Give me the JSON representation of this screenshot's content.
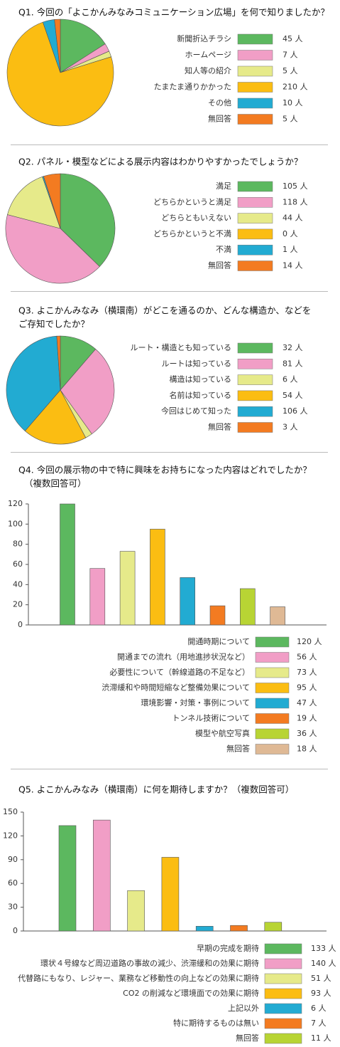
{
  "chart_data": [
    {
      "type": "pie",
      "title": [
        "Q1. 今回の「よこかんみなみコミュニケーション広場」を何で知りましたか？"
      ],
      "categories": [
        "新聞折込チラシ",
        "ホームページ",
        "知人等の紹介",
        "たまたま通りかかった",
        "その他",
        "無回答"
      ],
      "values": [
        45,
        7,
        5,
        210,
        10,
        5
      ],
      "value_labels": [
        "45 人",
        "7 人",
        "5 人",
        "210 人",
        "10 人",
        "5 人"
      ],
      "colors": [
        "#5cb85f",
        "#f19ec6",
        "#e6ea8a",
        "#fbbd12",
        "#22abd2",
        "#f37b21"
      ]
    },
    {
      "type": "pie",
      "title": [
        "Q2. パネル・模型などによる展示内容はわかりやすかったでしょうか？"
      ],
      "categories": [
        "満足",
        "どちらかというと満足",
        "どちらともいえない",
        "どちらかというと不満",
        "不満",
        "無回答"
      ],
      "values": [
        105,
        118,
        44,
        0,
        1,
        14
      ],
      "value_labels": [
        "105 人",
        "118 人",
        "44 人",
        "0 人",
        "1 人",
        "14 人"
      ],
      "colors": [
        "#5cb85f",
        "#f19ec6",
        "#e6ea8a",
        "#fbbd12",
        "#22abd2",
        "#f37b21"
      ]
    },
    {
      "type": "pie",
      "title": [
        "Q3. よこかんみなみ（横環南）がどこを通るのか、どんな構造か、などを",
        "ご存知でしたか？"
      ],
      "categories": [
        "ルート・構造とも知っている",
        "ルートは知っている",
        "構造は知っている",
        "名前は知っている",
        "今回はじめて知った",
        "無回答"
      ],
      "values": [
        32,
        81,
        6,
        54,
        106,
        3
      ],
      "value_labels": [
        "32 人",
        "81 人",
        "6 人",
        "54 人",
        "106 人",
        "3 人"
      ],
      "colors": [
        "#5cb85f",
        "#f19ec6",
        "#e6ea8a",
        "#fbbd12",
        "#22abd2",
        "#f37b21"
      ]
    },
    {
      "type": "bar",
      "title": [
        "Q4. 今回の展示物の中で特に興味をお持ちになった内容はどれでしたか？",
        "（複数回答可）"
      ],
      "categories": [
        "開通時期について",
        "開通までの流れ（用地進捗状況など）",
        "必要性について（幹線道路の不足など）",
        "渋滞緩和や時間短縮など整備効果について",
        "環境影響・対策・事例について",
        "トンネル技術について",
        "模型や航空写真",
        "無回答"
      ],
      "values": [
        120,
        56,
        73,
        95,
        47,
        19,
        36,
        18
      ],
      "value_labels": [
        "120 人",
        "56 人",
        "73 人",
        "95 人",
        "47 人",
        "19 人",
        "36 人",
        "18 人"
      ],
      "colors": [
        "#5cb85f",
        "#f19ec6",
        "#e6ea8a",
        "#fbbd12",
        "#22abd2",
        "#f37b21",
        "#b8d434",
        "#dfb995"
      ],
      "ylim": [
        0,
        120
      ],
      "yticks": [
        0,
        20,
        40,
        60,
        80,
        100,
        120
      ]
    },
    {
      "type": "bar",
      "title": [
        "Q5. よこかんみなみ（横環南）に何を期待しますか？（複数回答可）"
      ],
      "categories": [
        "早期の完成を期待",
        "環状４号線など周辺道路の事故の減少、渋滞緩和の効果に期待",
        "代替路にもなり、レジャー、業務など移動性の向上などの効果に期待",
        "CO2 の削減など環境面での効果に期待",
        "上記以外",
        "特に期待するものは無い",
        "無回答"
      ],
      "values": [
        133,
        140,
        51,
        93,
        6,
        7,
        11
      ],
      "value_labels": [
        "133 人",
        "140 人",
        "51 人",
        "93 人",
        "6 人",
        "7 人",
        "11 人"
      ],
      "colors": [
        "#5cb85f",
        "#f19ec6",
        "#e6ea8a",
        "#fbbd12",
        "#22abd2",
        "#f37b21",
        "#b8d434"
      ],
      "ylim": [
        0,
        150
      ],
      "yticks": [
        0,
        30,
        60,
        90,
        120,
        150
      ]
    }
  ]
}
